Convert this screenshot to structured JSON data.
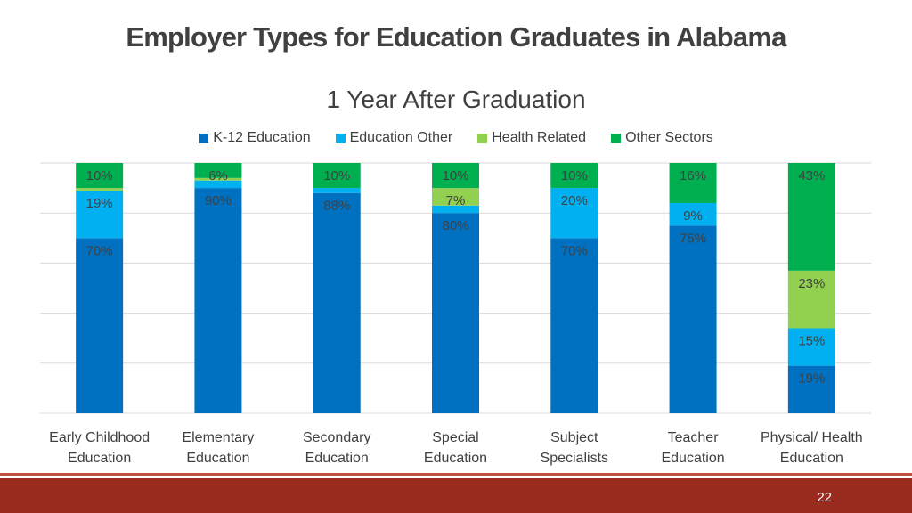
{
  "slide": {
    "title": "Employer Types for Education Graduates in Alabama",
    "page_number": "22"
  },
  "chart_data": {
    "type": "bar",
    "stacked": true,
    "title": "1 Year After Graduation",
    "xlabel": "",
    "ylabel": "",
    "ylim": [
      0,
      100
    ],
    "grid": true,
    "legend_position": "top",
    "categories": [
      [
        "Early Childhood",
        "Education"
      ],
      [
        "Elementary",
        "Education"
      ],
      [
        "Secondary",
        "Education"
      ],
      [
        "Special",
        "Education"
      ],
      [
        "Subject",
        "Specialists"
      ],
      [
        "Teacher",
        "Education"
      ],
      [
        "Physical/ Health",
        "Education"
      ]
    ],
    "series": [
      {
        "name": "K-12 Education",
        "color": "#0070c0",
        "values": [
          70,
          90,
          88,
          80,
          70,
          75,
          19
        ],
        "labels": [
          "70%",
          "90%",
          "88%",
          "80%",
          "70%",
          "75%",
          "19%"
        ]
      },
      {
        "name": "Education Other",
        "color": "#00b0f0",
        "values": [
          19,
          3,
          2,
          3,
          20,
          9,
          15
        ],
        "labels": [
          "19%",
          "",
          "",
          "",
          "20%",
          "9%",
          "15%"
        ]
      },
      {
        "name": "Health Related",
        "color": "#92d050",
        "values": [
          1,
          1,
          0,
          7,
          0,
          0,
          23
        ],
        "labels": [
          "",
          "",
          "",
          "7%",
          "",
          "",
          "23%"
        ]
      },
      {
        "name": "Other Sectors",
        "color": "#00b050",
        "values": [
          10,
          6,
          10,
          10,
          10,
          16,
          43
        ],
        "labels": [
          "10%",
          "6%",
          "10%",
          "10%",
          "10%",
          "16%",
          "43%"
        ]
      }
    ]
  }
}
